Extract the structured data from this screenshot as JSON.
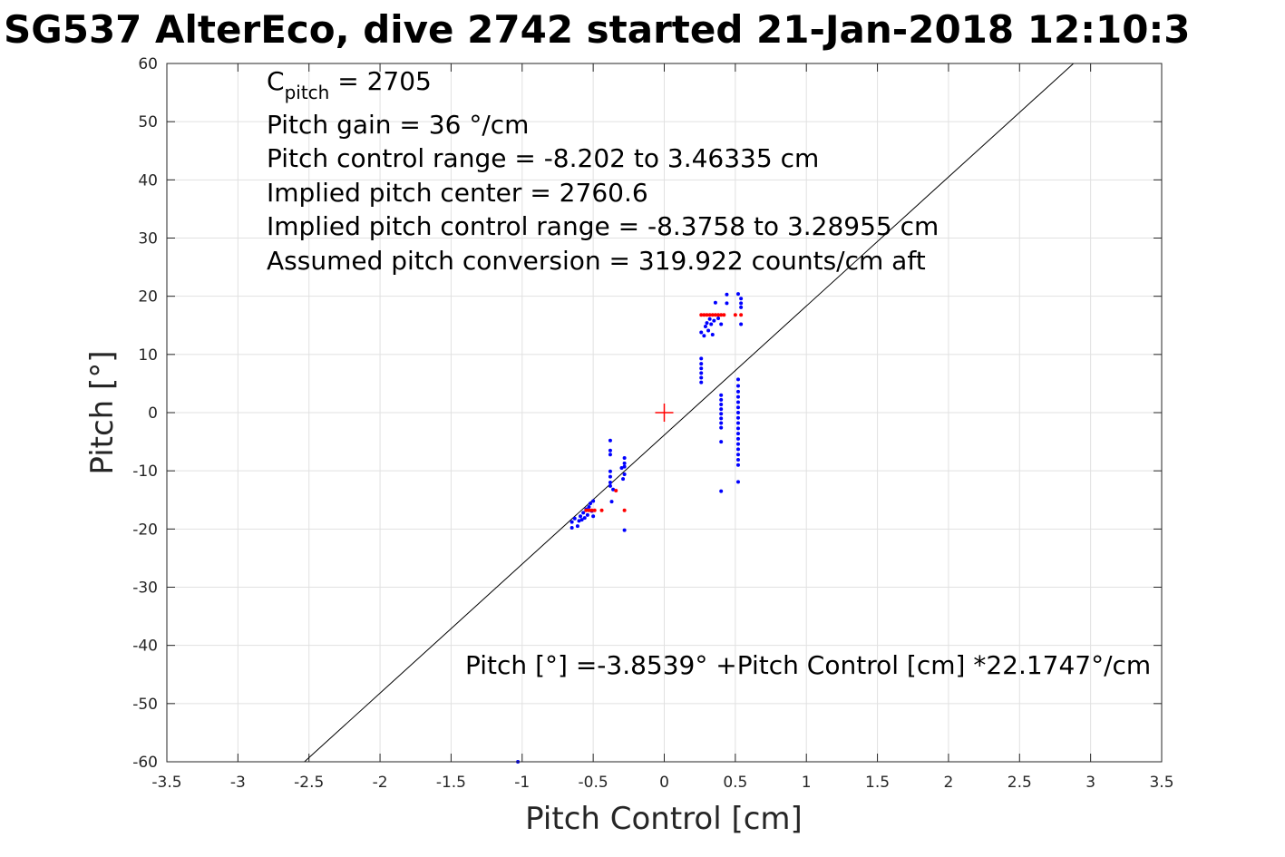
{
  "chart_data": {
    "type": "scatter",
    "title": "SG537 AlterEco, dive 2742 started 21-Jan-2018 12:10:3",
    "xlabel": "Pitch Control [cm]",
    "ylabel": "Pitch [°]",
    "xlim": [
      -3.5,
      3.5
    ],
    "ylim": [
      -60,
      60
    ],
    "grid": true,
    "xticks": [
      -3.5,
      -3,
      -2.5,
      -2,
      -1.5,
      -1,
      -0.5,
      0,
      0.5,
      1,
      1.5,
      2,
      2.5,
      3,
      3.5
    ],
    "xtick_labels": [
      "-3.5",
      "-3",
      "-2.5",
      "-2",
      "-1.5",
      "-1",
      "-0.5",
      "0",
      "0.5",
      "1",
      "1.5",
      "2",
      "2.5",
      "3",
      "3.5"
    ],
    "yticks": [
      -60,
      -50,
      -40,
      -30,
      -20,
      -10,
      0,
      10,
      20,
      30,
      40,
      50,
      60
    ],
    "ytick_labels": [
      "-60",
      "-50",
      "-40",
      "-30",
      "-20",
      "-10",
      "0",
      "10",
      "20",
      "30",
      "40",
      "50",
      "60"
    ],
    "annotations": {
      "cpitch_main": "C",
      "cpitch_sub": "pitch",
      "cpitch_value": " = 2705",
      "lines": [
        "Pitch gain = 36 °/cm",
        "Pitch control range = -8.202 to 3.46335 cm",
        "Implied pitch center = 2760.6",
        "Implied pitch control range = -8.3758 to 3.28955 cm",
        "Assumed pitch conversion = 319.922 counts/cm aft"
      ],
      "fit_equation": "Pitch [°] =-3.8539° +Pitch Control [cm] *22.1747°/cm"
    },
    "fit_line": {
      "intercept": -3.8539,
      "slope": 22.1747,
      "color": "#000000"
    },
    "center_marker": {
      "x": 0,
      "y": 0,
      "color": "#ff0000",
      "marker": "plus"
    },
    "series": [
      {
        "color": "#0000ff",
        "points": [
          [
            -0.65,
            -19.8
          ],
          [
            -0.65,
            -18.8
          ],
          [
            -0.63,
            -18.2
          ],
          [
            -0.61,
            -19.5
          ],
          [
            -0.6,
            -18.6
          ],
          [
            -0.59,
            -17.8
          ],
          [
            -0.58,
            -18.4
          ],
          [
            -0.57,
            -17.2
          ],
          [
            -0.56,
            -18.1
          ],
          [
            -0.55,
            -16.6
          ],
          [
            -0.54,
            -17.6
          ],
          [
            -0.53,
            -16.2
          ],
          [
            -0.52,
            -15.6
          ],
          [
            -0.51,
            -16.9
          ],
          [
            -0.5,
            -15.2
          ],
          [
            -0.5,
            -17.8
          ],
          [
            -0.38,
            -4.8
          ],
          [
            -0.38,
            -6.5
          ],
          [
            -0.38,
            -7.2
          ],
          [
            -0.38,
            -10.1
          ],
          [
            -0.38,
            -11.0
          ],
          [
            -0.38,
            -12.0
          ],
          [
            -0.38,
            -12.6
          ],
          [
            -0.36,
            -13.2
          ],
          [
            -0.37,
            -15.3
          ],
          [
            -0.3,
            -9.5
          ],
          [
            -0.29,
            -11.4
          ],
          [
            -0.28,
            -7.8
          ],
          [
            -0.28,
            -8.7
          ],
          [
            -0.28,
            -9.3
          ],
          [
            -0.28,
            -10.6
          ],
          [
            -0.28,
            -20.2
          ],
          [
            -1.03,
            -60
          ],
          [
            0.26,
            5.2
          ],
          [
            0.26,
            6.0
          ],
          [
            0.26,
            6.8
          ],
          [
            0.26,
            7.6
          ],
          [
            0.26,
            8.4
          ],
          [
            0.26,
            9.3
          ],
          [
            0.26,
            13.8
          ],
          [
            0.28,
            13.2
          ],
          [
            0.29,
            14.8
          ],
          [
            0.3,
            15.4
          ],
          [
            0.31,
            14.1
          ],
          [
            0.32,
            16.1
          ],
          [
            0.33,
            15.2
          ],
          [
            0.34,
            13.4
          ],
          [
            0.35,
            15.8
          ],
          [
            0.36,
            18.9
          ],
          [
            0.38,
            16.2
          ],
          [
            0.4,
            15.2
          ],
          [
            0.44,
            20.3
          ],
          [
            0.44,
            18.8
          ],
          [
            0.4,
            3.0
          ],
          [
            0.4,
            2.2
          ],
          [
            0.4,
            1.4
          ],
          [
            0.4,
            0.6
          ],
          [
            0.4,
            -0.2
          ],
          [
            0.4,
            -1.0
          ],
          [
            0.4,
            -1.8
          ],
          [
            0.4,
            -2.6
          ],
          [
            0.4,
            -5.0
          ],
          [
            0.4,
            -13.5
          ],
          [
            0.52,
            5.7
          ],
          [
            0.52,
            4.6
          ],
          [
            0.52,
            3.6
          ],
          [
            0.52,
            2.7
          ],
          [
            0.52,
            1.8
          ],
          [
            0.52,
            0.9
          ],
          [
            0.52,
            0.0
          ],
          [
            0.52,
            -0.9
          ],
          [
            0.52,
            -1.8
          ],
          [
            0.52,
            -2.7
          ],
          [
            0.52,
            -3.6
          ],
          [
            0.52,
            -4.5
          ],
          [
            0.52,
            -5.4
          ],
          [
            0.52,
            -6.3
          ],
          [
            0.52,
            -7.2
          ],
          [
            0.52,
            -8.1
          ],
          [
            0.52,
            -9.0
          ],
          [
            0.52,
            -11.9
          ],
          [
            0.52,
            20.4
          ],
          [
            0.54,
            19.6
          ],
          [
            0.54,
            18.8
          ],
          [
            0.54,
            18.1
          ],
          [
            0.54,
            15.2
          ]
        ]
      },
      {
        "color": "#ff0000",
        "points": [
          [
            -0.55,
            -16.8
          ],
          [
            -0.53,
            -16.8
          ],
          [
            -0.51,
            -16.8
          ],
          [
            -0.49,
            -16.8
          ],
          [
            -0.44,
            -16.8
          ],
          [
            -0.34,
            -13.4
          ],
          [
            -0.28,
            -16.8
          ],
          [
            0.26,
            16.8
          ],
          [
            0.28,
            16.8
          ],
          [
            0.3,
            16.8
          ],
          [
            0.32,
            16.8
          ],
          [
            0.34,
            16.8
          ],
          [
            0.36,
            16.8
          ],
          [
            0.38,
            16.8
          ],
          [
            0.4,
            16.8
          ],
          [
            0.42,
            16.8
          ],
          [
            0.5,
            16.8
          ],
          [
            0.54,
            16.8
          ]
        ]
      }
    ]
  }
}
